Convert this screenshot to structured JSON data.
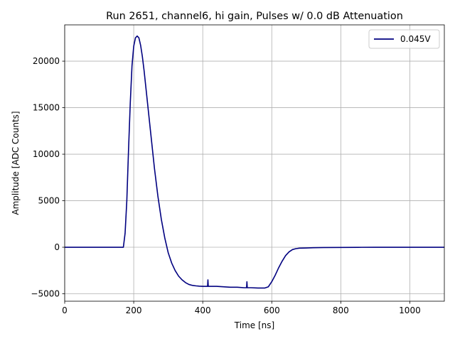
{
  "chart_data": {
    "type": "line",
    "title": "Run 2651, channel6, hi gain, Pulses w/ 0.0 dB Attenuation",
    "xlabel": "Time [ns]",
    "ylabel": "Amplitude [ADC Counts]",
    "xlim": [
      0,
      1100
    ],
    "ylim": [
      -5800,
      23900
    ],
    "xticks": [
      0,
      200,
      400,
      600,
      800,
      1000
    ],
    "xtick_labels": [
      "0",
      "200",
      "400",
      "600",
      "800",
      "1000"
    ],
    "yticks": [
      -5000,
      0,
      5000,
      10000,
      15000,
      20000
    ],
    "ytick_labels": [
      "−5000",
      "0",
      "5000",
      "10000",
      "15000",
      "20000"
    ],
    "grid": true,
    "legend_position": "top-right",
    "series": [
      {
        "name": "0.045V",
        "color": "#000080",
        "x": [
          0,
          50,
          100,
          150,
          170,
          175,
          180,
          185,
          190,
          195,
          200,
          205,
          210,
          215,
          220,
          225,
          230,
          240,
          250,
          260,
          270,
          280,
          290,
          300,
          310,
          320,
          330,
          340,
          350,
          360,
          370,
          380,
          390,
          400,
          410,
          414,
          415,
          416,
          420,
          440,
          460,
          480,
          500,
          520,
          527,
          528,
          529,
          540,
          560,
          580,
          590,
          600,
          610,
          620,
          630,
          640,
          650,
          660,
          670,
          680,
          700,
          720,
          750,
          800,
          850,
          900,
          950,
          1000,
          1050,
          1100
        ],
        "y": [
          0,
          0,
          0,
          0,
          0,
          1500,
          5000,
          10500,
          15500,
          19500,
          21600,
          22500,
          22700,
          22500,
          21700,
          20500,
          19000,
          15500,
          12000,
          8500,
          5500,
          3000,
          1000,
          -600,
          -1700,
          -2500,
          -3100,
          -3500,
          -3800,
          -4000,
          -4100,
          -4150,
          -4180,
          -4200,
          -4200,
          -4200,
          -3500,
          -4200,
          -4200,
          -4200,
          -4250,
          -4300,
          -4300,
          -4350,
          -4350,
          -3700,
          -4350,
          -4350,
          -4380,
          -4380,
          -4250,
          -3700,
          -3000,
          -2200,
          -1500,
          -900,
          -500,
          -250,
          -150,
          -100,
          -80,
          -50,
          -30,
          -20,
          -10,
          0,
          0,
          0,
          0,
          0
        ]
      }
    ]
  }
}
